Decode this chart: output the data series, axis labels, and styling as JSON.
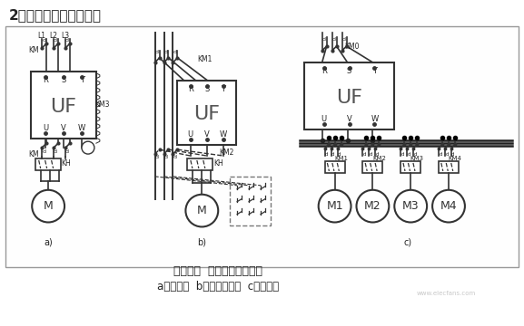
{
  "title": "2．变频器的输出主电路",
  "caption_line1": "图４－２  变频器输出主电路",
  "caption_line2": "a）一控一  b）切换主电路  c）一控多",
  "bg_color": "#ffffff",
  "text_color": "#222222",
  "line_color": "#333333",
  "title_fontsize": 11,
  "caption_fontsize": 9,
  "watermark": "www.elecfans.com",
  "font_family": "SimHei"
}
